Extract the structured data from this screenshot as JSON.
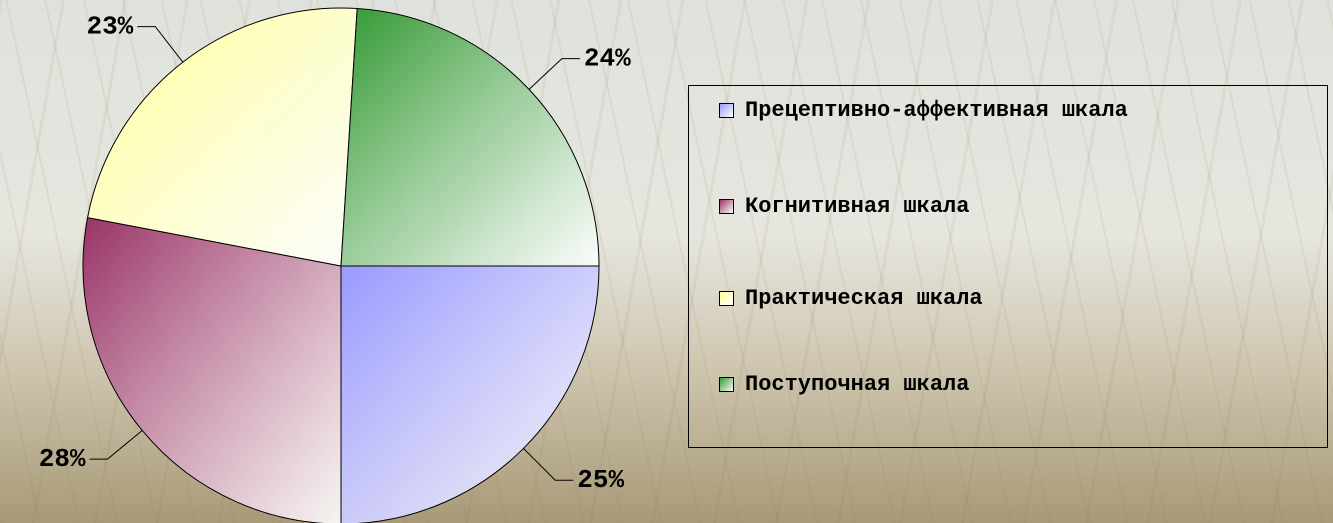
{
  "chart_data": {
    "type": "pie",
    "categories": [
      "Прецептивно-аффективная шкала",
      "Когнитивная шкала",
      "Практическая шкала",
      "Поступочная шкала"
    ],
    "values": [
      25,
      28,
      23,
      24
    ],
    "value_labels": [
      "25%",
      "28%",
      "23%",
      "24%"
    ],
    "colors": [
      "#9999ff",
      "#993366",
      "#ffff99",
      "#339933"
    ],
    "legend": "right"
  }
}
